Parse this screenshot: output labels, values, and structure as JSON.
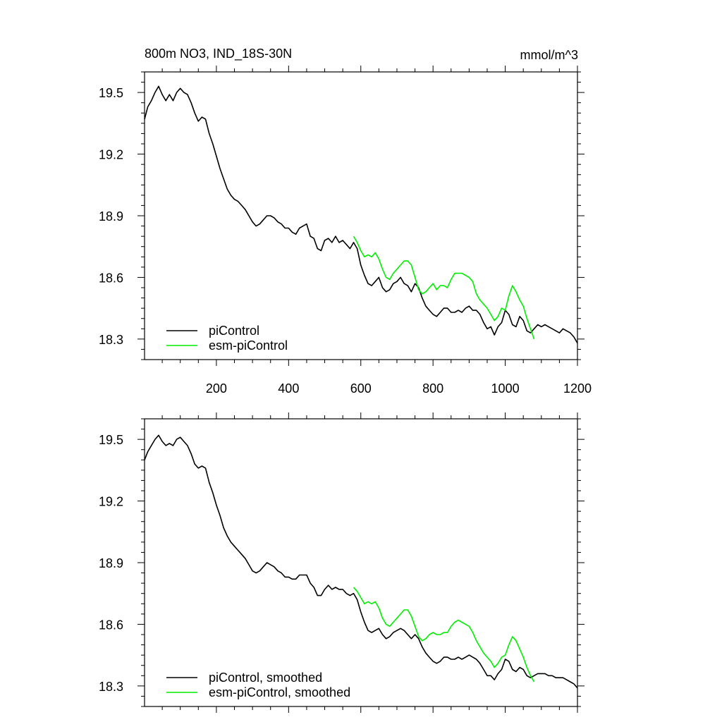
{
  "figure": {
    "title": "800m NO3, IND_18S-30N",
    "units": "mmol/m^3",
    "series_colors": {
      "piControl": "#000000",
      "esm-piControl": "#00ee00"
    }
  },
  "chart_data": [
    {
      "type": "line",
      "title": "800m NO3, IND_18S-30N",
      "units": "mmol/m^3",
      "xlim": [
        1,
        1200
      ],
      "ylim": [
        18.2,
        19.6
      ],
      "x_ticks": [
        200,
        400,
        600,
        800,
        1000,
        1200
      ],
      "x_tick_labels": [
        "200",
        "400",
        "600",
        "800",
        "1000",
        "1200"
      ],
      "y_ticks": [
        18.3,
        18.6,
        18.9,
        19.2,
        19.5
      ],
      "y_tick_labels": [
        "18.3",
        "18.6",
        "18.9",
        "19.2",
        "19.5"
      ],
      "grid": false,
      "legend": "bottom-left",
      "series": [
        {
          "name": "piControl",
          "color": "#000000",
          "x": [
            1,
            10,
            20,
            30,
            40,
            50,
            60,
            70,
            80,
            90,
            100,
            110,
            120,
            130,
            140,
            150,
            160,
            170,
            180,
            190,
            200,
            210,
            220,
            230,
            240,
            250,
            260,
            270,
            280,
            290,
            300,
            310,
            320,
            330,
            340,
            350,
            360,
            370,
            380,
            390,
            400,
            410,
            420,
            430,
            440,
            450,
            460,
            470,
            480,
            490,
            500,
            510,
            520,
            530,
            540,
            550,
            560,
            570,
            580,
            590,
            600,
            610,
            620,
            630,
            640,
            650,
            660,
            670,
            680,
            690,
            700,
            710,
            720,
            730,
            740,
            750,
            760,
            770,
            780,
            790,
            800,
            810,
            820,
            830,
            840,
            850,
            860,
            870,
            880,
            890,
            900,
            910,
            920,
            930,
            940,
            950,
            960,
            970,
            980,
            990,
            1000,
            1010,
            1020,
            1030,
            1040,
            1050,
            1060,
            1070,
            1080,
            1090,
            1100,
            1110,
            1120,
            1130,
            1140,
            1150,
            1160,
            1170,
            1180,
            1190,
            1200
          ],
          "values": [
            19.37,
            19.43,
            19.46,
            19.5,
            19.53,
            19.49,
            19.46,
            19.49,
            19.46,
            19.5,
            19.52,
            19.5,
            19.49,
            19.45,
            19.4,
            19.36,
            19.38,
            19.37,
            19.3,
            19.25,
            19.19,
            19.13,
            19.08,
            19.03,
            19.0,
            18.98,
            18.97,
            18.95,
            18.93,
            18.9,
            18.87,
            18.85,
            18.86,
            18.88,
            18.9,
            18.9,
            18.89,
            18.87,
            18.86,
            18.84,
            18.84,
            18.82,
            18.81,
            18.84,
            18.85,
            18.86,
            18.8,
            18.79,
            18.74,
            18.73,
            18.78,
            18.79,
            18.77,
            18.8,
            18.77,
            18.78,
            18.76,
            18.74,
            18.77,
            18.74,
            18.66,
            18.61,
            18.57,
            18.56,
            18.58,
            18.6,
            18.55,
            18.53,
            18.54,
            18.57,
            18.58,
            18.6,
            18.57,
            18.56,
            18.53,
            18.57,
            18.55,
            18.5,
            18.46,
            18.44,
            18.42,
            18.41,
            18.43,
            18.45,
            18.45,
            18.43,
            18.43,
            18.44,
            18.43,
            18.45,
            18.46,
            18.44,
            18.44,
            18.42,
            18.38,
            18.35,
            18.36,
            18.32,
            18.36,
            18.38,
            18.44,
            18.42,
            18.37,
            18.36,
            18.41,
            18.39,
            18.34,
            18.33,
            18.35,
            18.37,
            18.36,
            18.37,
            18.36,
            18.35,
            18.34,
            18.33,
            18.35,
            18.34,
            18.33,
            18.31,
            18.28
          ]
        },
        {
          "name": "esm-piControl",
          "color": "#00ee00",
          "x": [
            580,
            590,
            600,
            610,
            620,
            630,
            640,
            650,
            660,
            670,
            680,
            690,
            700,
            710,
            720,
            730,
            740,
            750,
            760,
            770,
            780,
            790,
            800,
            810,
            820,
            830,
            840,
            850,
            860,
            870,
            880,
            890,
            900,
            910,
            920,
            930,
            940,
            950,
            960,
            970,
            980,
            990,
            1000,
            1010,
            1020,
            1030,
            1040,
            1050,
            1060,
            1070,
            1080
          ],
          "values": [
            18.8,
            18.77,
            18.73,
            18.7,
            18.71,
            18.7,
            18.72,
            18.69,
            18.64,
            18.6,
            18.59,
            18.62,
            18.64,
            18.66,
            18.68,
            18.68,
            18.66,
            18.6,
            18.54,
            18.52,
            18.53,
            18.55,
            18.57,
            18.54,
            18.56,
            18.56,
            18.55,
            18.59,
            18.62,
            18.62,
            18.62,
            18.61,
            18.6,
            18.58,
            18.52,
            18.49,
            18.47,
            18.45,
            18.42,
            18.39,
            18.41,
            18.45,
            18.44,
            18.51,
            18.56,
            18.53,
            18.49,
            18.46,
            18.4,
            18.35,
            18.3
          ]
        }
      ],
      "legend_entries": [
        "piControl",
        "esm-piControl"
      ]
    },
    {
      "type": "line",
      "xlim": [
        1,
        1200
      ],
      "ylim": [
        18.2,
        19.6
      ],
      "x_ticks": [
        200,
        400,
        600,
        800,
        1000,
        1200
      ],
      "y_ticks": [
        18.3,
        18.6,
        18.9,
        19.2,
        19.5
      ],
      "y_tick_labels": [
        "18.3",
        "18.6",
        "18.9",
        "19.2",
        "19.5"
      ],
      "grid": false,
      "legend": "bottom-left",
      "series": [
        {
          "name": "piControl, smoothed",
          "color": "#000000",
          "x": [
            1,
            10,
            20,
            30,
            40,
            50,
            60,
            70,
            80,
            90,
            100,
            110,
            120,
            130,
            140,
            150,
            160,
            170,
            180,
            190,
            200,
            210,
            220,
            230,
            240,
            250,
            260,
            270,
            280,
            290,
            300,
            310,
            320,
            330,
            340,
            350,
            360,
            370,
            380,
            390,
            400,
            410,
            420,
            430,
            440,
            450,
            460,
            470,
            480,
            490,
            500,
            510,
            520,
            530,
            540,
            550,
            560,
            570,
            580,
            590,
            600,
            610,
            620,
            630,
            640,
            650,
            660,
            670,
            680,
            690,
            700,
            710,
            720,
            730,
            740,
            750,
            760,
            770,
            780,
            790,
            800,
            810,
            820,
            830,
            840,
            850,
            860,
            870,
            880,
            890,
            900,
            910,
            920,
            930,
            940,
            950,
            960,
            970,
            980,
            990,
            1000,
            1010,
            1020,
            1030,
            1040,
            1050,
            1060,
            1070,
            1080,
            1090,
            1100,
            1110,
            1120,
            1130,
            1140,
            1150,
            1160,
            1170,
            1180,
            1190,
            1200
          ],
          "values": [
            19.4,
            19.44,
            19.47,
            19.5,
            19.52,
            19.49,
            19.47,
            19.48,
            19.47,
            19.5,
            19.51,
            19.49,
            19.47,
            19.43,
            19.38,
            19.36,
            19.37,
            19.36,
            19.29,
            19.24,
            19.18,
            19.13,
            19.07,
            19.03,
            19.0,
            18.98,
            18.96,
            18.94,
            18.92,
            18.89,
            18.86,
            18.85,
            18.86,
            18.88,
            18.9,
            18.89,
            18.88,
            18.86,
            18.85,
            18.83,
            18.83,
            18.82,
            18.82,
            18.84,
            18.84,
            18.84,
            18.8,
            18.78,
            18.74,
            18.74,
            18.77,
            18.79,
            18.77,
            18.78,
            18.77,
            18.77,
            18.75,
            18.74,
            18.75,
            18.72,
            18.66,
            18.61,
            18.57,
            18.56,
            18.57,
            18.58,
            18.55,
            18.53,
            18.54,
            18.56,
            18.57,
            18.58,
            18.57,
            18.55,
            18.53,
            18.55,
            18.53,
            18.49,
            18.46,
            18.44,
            18.42,
            18.41,
            18.42,
            18.44,
            18.44,
            18.43,
            18.43,
            18.44,
            18.43,
            18.44,
            18.45,
            18.44,
            18.43,
            18.41,
            18.38,
            18.35,
            18.35,
            18.33,
            18.36,
            18.38,
            18.43,
            18.42,
            18.38,
            18.37,
            18.39,
            18.38,
            18.35,
            18.34,
            18.35,
            18.36,
            18.36,
            18.36,
            18.35,
            18.35,
            18.34,
            18.34,
            18.34,
            18.33,
            18.32,
            18.31,
            18.29
          ]
        },
        {
          "name": "esm-piControl, smoothed",
          "color": "#00ee00",
          "x": [
            580,
            590,
            600,
            610,
            620,
            630,
            640,
            650,
            660,
            670,
            680,
            690,
            700,
            710,
            720,
            730,
            740,
            750,
            760,
            770,
            780,
            790,
            800,
            810,
            820,
            830,
            840,
            850,
            860,
            870,
            880,
            890,
            900,
            910,
            920,
            930,
            940,
            950,
            960,
            970,
            980,
            990,
            1000,
            1010,
            1020,
            1030,
            1040,
            1050,
            1060,
            1070,
            1080
          ],
          "values": [
            18.78,
            18.76,
            18.73,
            18.7,
            18.71,
            18.7,
            18.71,
            18.68,
            18.63,
            18.6,
            18.59,
            18.61,
            18.63,
            18.65,
            18.67,
            18.67,
            18.64,
            18.59,
            18.54,
            18.52,
            18.53,
            18.55,
            18.56,
            18.55,
            18.55,
            18.56,
            18.56,
            18.59,
            18.61,
            18.62,
            18.61,
            18.6,
            18.59,
            18.56,
            18.52,
            18.49,
            18.46,
            18.44,
            18.42,
            18.39,
            18.41,
            18.44,
            18.45,
            18.5,
            18.54,
            18.52,
            18.48,
            18.44,
            18.39,
            18.35,
            18.32
          ]
        }
      ],
      "legend_entries": [
        "piControl, smoothed",
        "esm-piControl, smoothed"
      ]
    }
  ]
}
